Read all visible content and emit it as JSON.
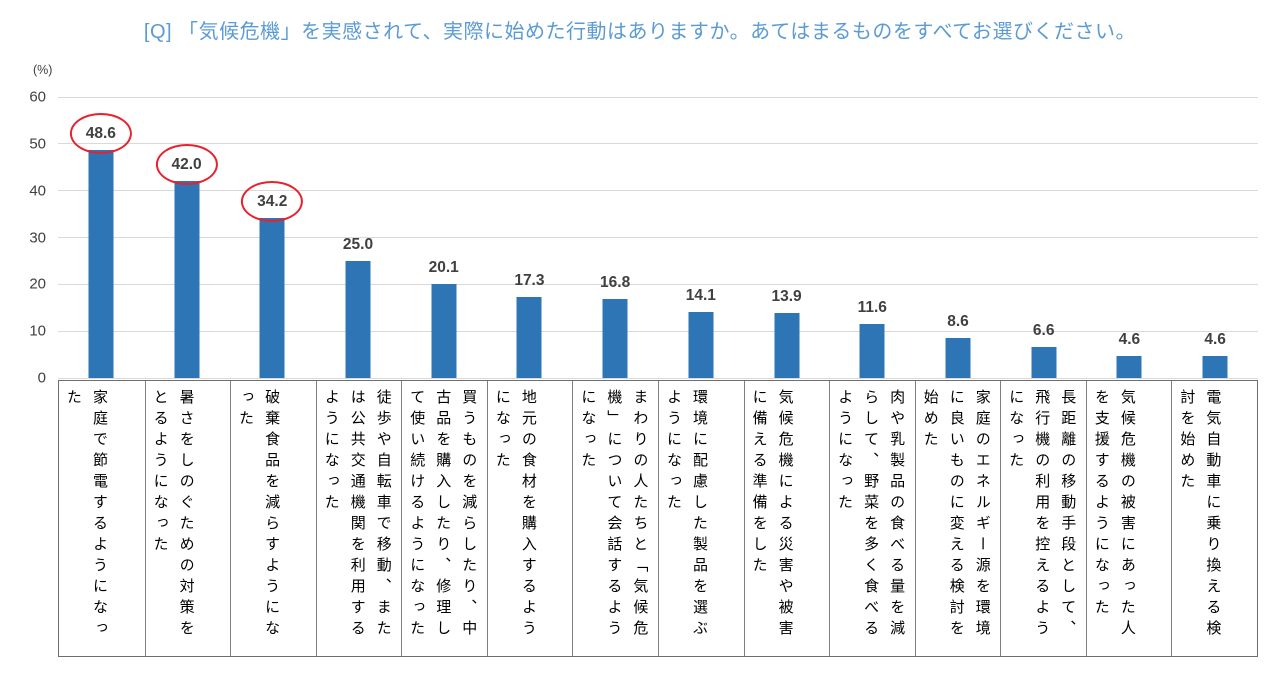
{
  "title": "[Q] 「気候危機」を実感されて、実際に始めた行動はありますか。あてはまるものをすべてお選びください。",
  "colors": {
    "title_text": "#5b9bd5",
    "bar": "#2e75b6",
    "gridline": "#d9d9d9",
    "data_label": "#404040",
    "highlight_circle": "#e8212d",
    "table_border": "#808080",
    "category_text": "#000000"
  },
  "chart_data": {
    "type": "bar",
    "title": "[Q] 「気候危機」を実感されて、実際に始めた行動はありますか。あてはまるものをすべてお選びください。",
    "ylabel": "(%)",
    "xlabel": "",
    "ylim": [
      0,
      60
    ],
    "yticks": [
      0,
      10,
      20,
      30,
      40,
      50,
      60
    ],
    "grid": true,
    "legend": "none",
    "value_decimals": 1,
    "circled_indices": [
      0,
      1,
      2
    ],
    "categories": [
      "家庭で節電するようになった",
      "暑さをしのぐための対策をとるようになった",
      "破棄食品を減らすようになった",
      "徒歩や自転車で移動、または公共交通機関を利用するようになった",
      "買うものを減らしたり、中古品を購入したり、修理して使い続けるようになった",
      "地元の食材を購入するようになった",
      "まわりの人たちと「気候危機」について会話するようになった",
      "環境に配慮した製品を選ぶようになった",
      "気候危機による災害や被害に備える準備をした",
      "肉や乳製品の食べる量を減らして、野菜を多く食べるようになった",
      "家庭のエネルギー源を環境に良いものに変える検討を始めた",
      "長距離の移動手段として、飛行機の利用を控えるようになった",
      "気候危機の被害にあった人を支援するようになった",
      "電気自動車に乗り換える検討を始めた"
    ],
    "values": [
      48.6,
      42.0,
      34.2,
      25.0,
      20.1,
      17.3,
      16.8,
      14.1,
      13.9,
      11.6,
      8.6,
      6.6,
      4.6,
      4.6
    ]
  }
}
